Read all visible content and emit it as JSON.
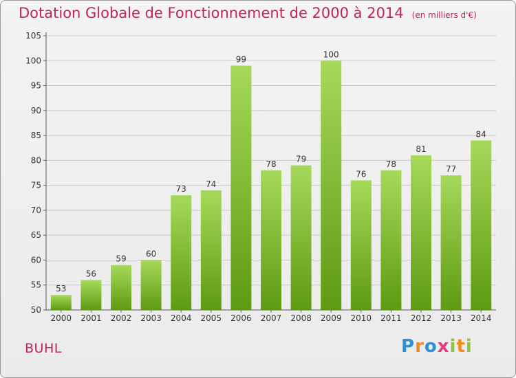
{
  "header": {
    "title": "Dotation Globale de Fonctionnement de 2000 à 2014",
    "unit": "(en milliers d'€)"
  },
  "footer": {
    "commune": "BUHL",
    "logo_text": "Proxiti"
  },
  "colors": {
    "title": "#c3245a",
    "bar_light": "#a6d95a",
    "bar_dark": "#5e9a12",
    "grid": "#c9c9c9"
  },
  "chart_data": {
    "type": "bar",
    "title": "Dotation Globale de Fonctionnement de 2000 à 2014",
    "subtitle": "(en milliers d'€)",
    "xlabel": "",
    "ylabel": "",
    "categories": [
      "2000",
      "2001",
      "2002",
      "2003",
      "2004",
      "2005",
      "2006",
      "2007",
      "2008",
      "2009",
      "2010",
      "2011",
      "2012",
      "2013",
      "2014"
    ],
    "values": [
      53,
      56,
      59,
      60,
      73,
      74,
      99,
      78,
      79,
      100,
      76,
      78,
      81,
      77,
      84
    ],
    "ylim": [
      50,
      105
    ],
    "yticks": [
      50,
      55,
      60,
      65,
      70,
      75,
      80,
      85,
      90,
      95,
      100,
      105
    ],
    "grid": true,
    "legend": "none",
    "data_labels": true
  }
}
